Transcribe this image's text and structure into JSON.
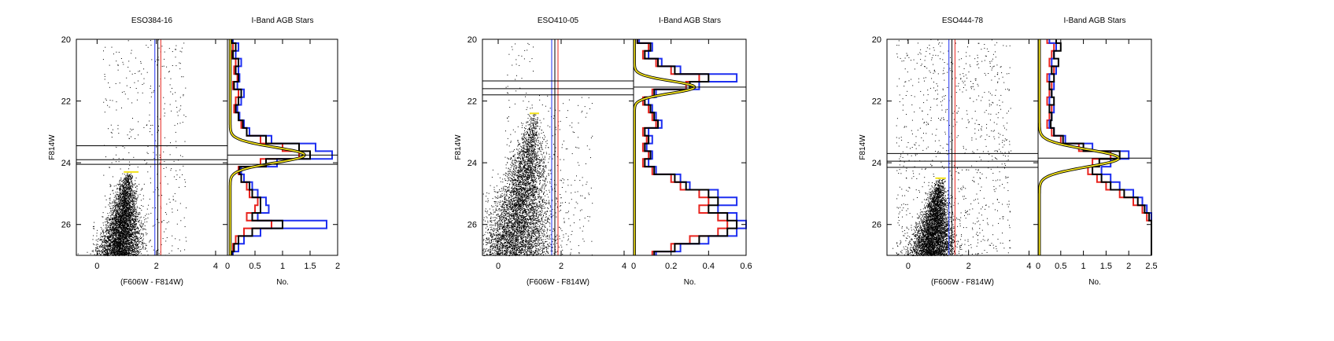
{
  "figure": {
    "panels": [
      {
        "cmd_title": "ESO384-16",
        "lf_title": "I-Band AGB Stars",
        "ylabel": "F814W",
        "cmd_xlabel": "(F606W - F814W)",
        "lf_xlabel": "No."
      },
      {
        "cmd_title": "ESO410-05",
        "lf_title": "I-Band AGB Stars",
        "ylabel": "F814W",
        "cmd_xlabel": "(F606W - F814W)",
        "lf_xlabel": "No."
      },
      {
        "cmd_title": "ESO444-78",
        "lf_title": "I-Band AGB Stars",
        "ylabel": "F814W",
        "cmd_xlabel": "(F606W - F814W)",
        "lf_xlabel": "No."
      }
    ]
  },
  "colors": {
    "points": "#000000",
    "red_line": "#e8241e",
    "blue_line": "#1d2ff0",
    "black_line": "#000000",
    "yellow_line": "#f2e21a"
  },
  "chart_data": [
    {
      "type": "scatter",
      "title": "ESO384-16",
      "xlabel": "(F606W - F814W)",
      "ylabel": "F814W",
      "xlim": [
        -0.7,
        4.4
      ],
      "ylim": [
        27.0,
        20.0
      ],
      "xticks": [
        0,
        2,
        4
      ],
      "yticks": [
        20,
        22,
        24,
        26
      ],
      "rgb_tip": {
        "x": [
          0.9,
          1.4
        ],
        "y": 24.3
      },
      "vertical_lines": {
        "blue": 1.95,
        "black": 2.05,
        "red": 2.15
      },
      "horizontal_lines": [
        23.45,
        23.9,
        24.05
      ]
    },
    {
      "type": "line",
      "title": "I-Band AGB Stars",
      "xlabel": "No.",
      "xlim": [
        0,
        2.0
      ],
      "ylim": [
        27.0,
        20.0
      ],
      "xticks": [
        0,
        0.5,
        1,
        1.5,
        2
      ],
      "xtick_labels": [
        "0",
        "0.5",
        "1",
        "1.5",
        "2"
      ],
      "mag_grid": [
        20.0,
        20.25,
        20.5,
        20.75,
        21.0,
        21.25,
        21.5,
        21.75,
        22.0,
        22.25,
        22.5,
        22.75,
        23.0,
        23.25,
        23.5,
        23.75,
        24.0,
        24.25,
        24.5,
        24.75,
        25.0,
        25.25,
        25.5,
        25.75,
        26.0,
        26.25,
        26.5,
        26.75,
        27.0
      ],
      "series": [
        {
          "color": "red",
          "values": [
            0.05,
            0.1,
            0.08,
            0.15,
            0.12,
            0.18,
            0.1,
            0.2,
            0.15,
            0.12,
            0.2,
            0.25,
            0.35,
            0.6,
            1.0,
            1.3,
            0.6,
            0.2,
            0.25,
            0.35,
            0.4,
            0.55,
            0.5,
            0.35,
            0.8,
            0.3,
            0.15,
            0.1,
            0.05
          ]
        },
        {
          "color": "blue",
          "values": [
            0.1,
            0.2,
            0.15,
            0.25,
            0.2,
            0.22,
            0.18,
            0.3,
            0.25,
            0.18,
            0.22,
            0.3,
            0.4,
            0.8,
            1.6,
            1.9,
            0.9,
            0.25,
            0.3,
            0.45,
            0.55,
            0.7,
            0.75,
            0.55,
            1.8,
            0.6,
            0.3,
            0.2,
            0.1
          ]
        },
        {
          "color": "black",
          "values": [
            0.08,
            0.15,
            0.1,
            0.2,
            0.15,
            0.2,
            0.12,
            0.25,
            0.2,
            0.15,
            0.2,
            0.28,
            0.35,
            0.7,
            1.3,
            1.5,
            0.7,
            0.22,
            0.25,
            0.4,
            0.45,
            0.6,
            0.6,
            0.45,
            1.0,
            0.45,
            0.2,
            0.12,
            0.08
          ]
        }
      ],
      "fit": {
        "color": "yellow",
        "peak_mag": 23.75,
        "peak_value": 1.35,
        "width": 0.25,
        "base": 0.05
      },
      "horizontal_lines": [
        23.75,
        24.05
      ]
    },
    {
      "type": "scatter",
      "title": "ESO410-05",
      "xlabel": "(F606W - F814W)",
      "ylabel": "F814W",
      "xlim": [
        -0.5,
        4.3
      ],
      "ylim": [
        27.0,
        20.0
      ],
      "xticks": [
        0,
        2,
        4
      ],
      "yticks": [
        20,
        22,
        24,
        26
      ],
      "rgb_tip": {
        "x": [
          1.0,
          1.3
        ],
        "y": 22.4
      },
      "vertical_lines": {
        "blue": 1.7,
        "black": 1.8,
        "red": 1.9
      },
      "horizontal_lines": [
        21.35,
        21.6,
        21.8
      ]
    },
    {
      "type": "line",
      "title": "I-Band AGB Stars",
      "xlabel": "No.",
      "xlim": [
        0,
        0.6
      ],
      "ylim": [
        27.0,
        20.0
      ],
      "xticks": [
        0,
        0.2,
        0.4,
        0.6
      ],
      "xtick_labels": [
        "0",
        "0.2",
        "0.4",
        "0.6"
      ],
      "mag_grid": [
        20.0,
        20.25,
        20.5,
        20.75,
        21.0,
        21.25,
        21.5,
        21.75,
        22.0,
        22.25,
        22.5,
        22.75,
        23.0,
        23.25,
        23.5,
        23.75,
        24.0,
        24.25,
        24.5,
        24.75,
        25.0,
        25.25,
        25.5,
        25.75,
        26.0,
        26.25,
        26.5,
        26.75,
        27.0
      ],
      "series": [
        {
          "color": "red",
          "values": [
            0.02,
            0.08,
            0.05,
            0.12,
            0.2,
            0.35,
            0.28,
            0.1,
            0.05,
            0.08,
            0.1,
            0.12,
            0.05,
            0.07,
            0.05,
            0.08,
            0.05,
            0.1,
            0.2,
            0.25,
            0.35,
            0.4,
            0.35,
            0.45,
            0.5,
            0.45,
            0.3,
            0.2,
            0.1
          ]
        },
        {
          "color": "blue",
          "values": [
            0.03,
            0.1,
            0.08,
            0.15,
            0.25,
            0.55,
            0.35,
            0.12,
            0.08,
            0.1,
            0.12,
            0.15,
            0.08,
            0.1,
            0.07,
            0.1,
            0.08,
            0.12,
            0.25,
            0.3,
            0.45,
            0.55,
            0.45,
            0.55,
            0.6,
            0.55,
            0.4,
            0.25,
            0.12
          ]
        },
        {
          "color": "black",
          "values": [
            0.02,
            0.09,
            0.06,
            0.13,
            0.22,
            0.4,
            0.3,
            0.11,
            0.06,
            0.09,
            0.11,
            0.13,
            0.06,
            0.08,
            0.06,
            0.09,
            0.06,
            0.11,
            0.22,
            0.28,
            0.4,
            0.45,
            0.4,
            0.5,
            0.55,
            0.5,
            0.35,
            0.22,
            0.11
          ]
        }
      ],
      "fit": {
        "color": "yellow",
        "peak_mag": 21.55,
        "peak_value": 0.32,
        "width": 0.2,
        "base": 0.005
      },
      "horizontal_lines": [
        21.55
      ]
    },
    {
      "type": "scatter",
      "title": "ESO444-78",
      "xlabel": "(F606W - F814W)",
      "ylabel": "F814W",
      "xlim": [
        -0.7,
        4.3
      ],
      "ylim": [
        27.0,
        20.0
      ],
      "xticks": [
        0,
        2,
        4
      ],
      "yticks": [
        20,
        22,
        24,
        26
      ],
      "rgb_tip": {
        "x": [
          0.9,
          1.25
        ],
        "y": 24.5
      },
      "vertical_lines": {
        "blue": 1.35,
        "black": 1.45,
        "red": 1.55
      },
      "horizontal_lines": [
        23.7,
        23.95,
        24.15
      ]
    },
    {
      "type": "line",
      "title": "I-Band AGB Stars",
      "xlabel": "No.",
      "xlim": [
        0,
        2.5
      ],
      "ylim": [
        27.0,
        20.0
      ],
      "xticks": [
        0,
        0.5,
        1,
        1.5,
        2,
        2.5
      ],
      "xtick_labels": [
        "0",
        "0.5",
        "1",
        "1.5",
        "2",
        "2.5"
      ],
      "mag_grid": [
        20.0,
        20.25,
        20.5,
        20.75,
        21.0,
        21.25,
        21.5,
        21.75,
        22.0,
        22.25,
        22.5,
        22.75,
        23.0,
        23.25,
        23.5,
        23.75,
        24.0,
        24.25,
        24.5,
        24.75,
        25.0,
        25.25,
        25.5,
        25.75,
        26.0,
        26.25,
        26.5,
        26.75,
        27.0
      ],
      "series": [
        {
          "color": "red",
          "values": [
            0.2,
            0.35,
            0.3,
            0.25,
            0.35,
            0.2,
            0.3,
            0.25,
            0.2,
            0.3,
            0.25,
            0.2,
            0.3,
            0.5,
            0.9,
            1.6,
            1.2,
            1.1,
            1.3,
            1.5,
            1.8,
            2.1,
            2.3,
            2.4,
            2.5,
            2.5,
            2.5,
            2.5,
            2.5
          ]
        },
        {
          "color": "blue",
          "values": [
            0.25,
            0.4,
            0.35,
            0.3,
            0.4,
            0.25,
            0.35,
            0.3,
            0.25,
            0.35,
            0.3,
            0.25,
            0.35,
            0.6,
            1.2,
            2.0,
            1.6,
            1.4,
            1.6,
            1.8,
            2.1,
            2.3,
            2.4,
            2.5,
            2.5,
            2.5,
            2.5,
            2.5,
            2.5
          ]
        },
        {
          "color": "black",
          "values": [
            0.4,
            0.5,
            0.35,
            0.45,
            0.3,
            0.35,
            0.25,
            0.3,
            0.35,
            0.25,
            0.3,
            0.28,
            0.35,
            0.55,
            1.0,
            1.8,
            1.35,
            1.2,
            1.4,
            1.6,
            1.9,
            2.2,
            2.35,
            2.45,
            2.5,
            2.5,
            2.5,
            2.5,
            2.5
          ]
        }
      ],
      "fit": {
        "color": "yellow",
        "peak_mag": 23.85,
        "peak_value": 1.75,
        "width": 0.28,
        "base": 0.03
      },
      "horizontal_lines": [
        23.85
      ]
    }
  ]
}
